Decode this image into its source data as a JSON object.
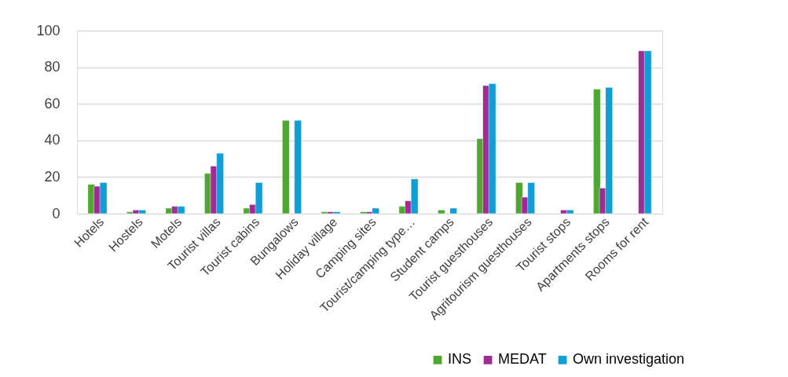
{
  "chart_data": {
    "type": "bar",
    "categories": [
      "Hotels",
      "Hostels",
      "Motels",
      "Tourist villas",
      "Tourist cabins",
      "Bungalows",
      "Holiday village",
      "Camping sites",
      "Tourist/camping type…",
      "Student camps",
      "Tourist guesthouses",
      "Agritourism guesthouses",
      "Tourist stops",
      "Apartments stops",
      "Rooms for rent"
    ],
    "series": [
      {
        "name": "INS",
        "color": "#4ea72e",
        "values": [
          16,
          1,
          3,
          22,
          3,
          51,
          1,
          1,
          4,
          2,
          41,
          17,
          null,
          68,
          null
        ]
      },
      {
        "name": "MEDAT",
        "color": "#a02b93",
        "values": [
          15,
          2,
          4,
          26,
          5,
          null,
          1,
          1,
          7,
          null,
          70,
          9,
          2,
          14,
          89
        ]
      },
      {
        "name": "Own investigation",
        "color": "#0f9ed5",
        "values": [
          17,
          2,
          4,
          33,
          17,
          51,
          1,
          3,
          19,
          3,
          71,
          17,
          2,
          69,
          89
        ]
      }
    ],
    "ylim": [
      0,
      100
    ],
    "yticks": [
      0,
      20,
      40,
      60,
      80,
      100
    ],
    "grid": "y",
    "legend": "bottom right"
  }
}
